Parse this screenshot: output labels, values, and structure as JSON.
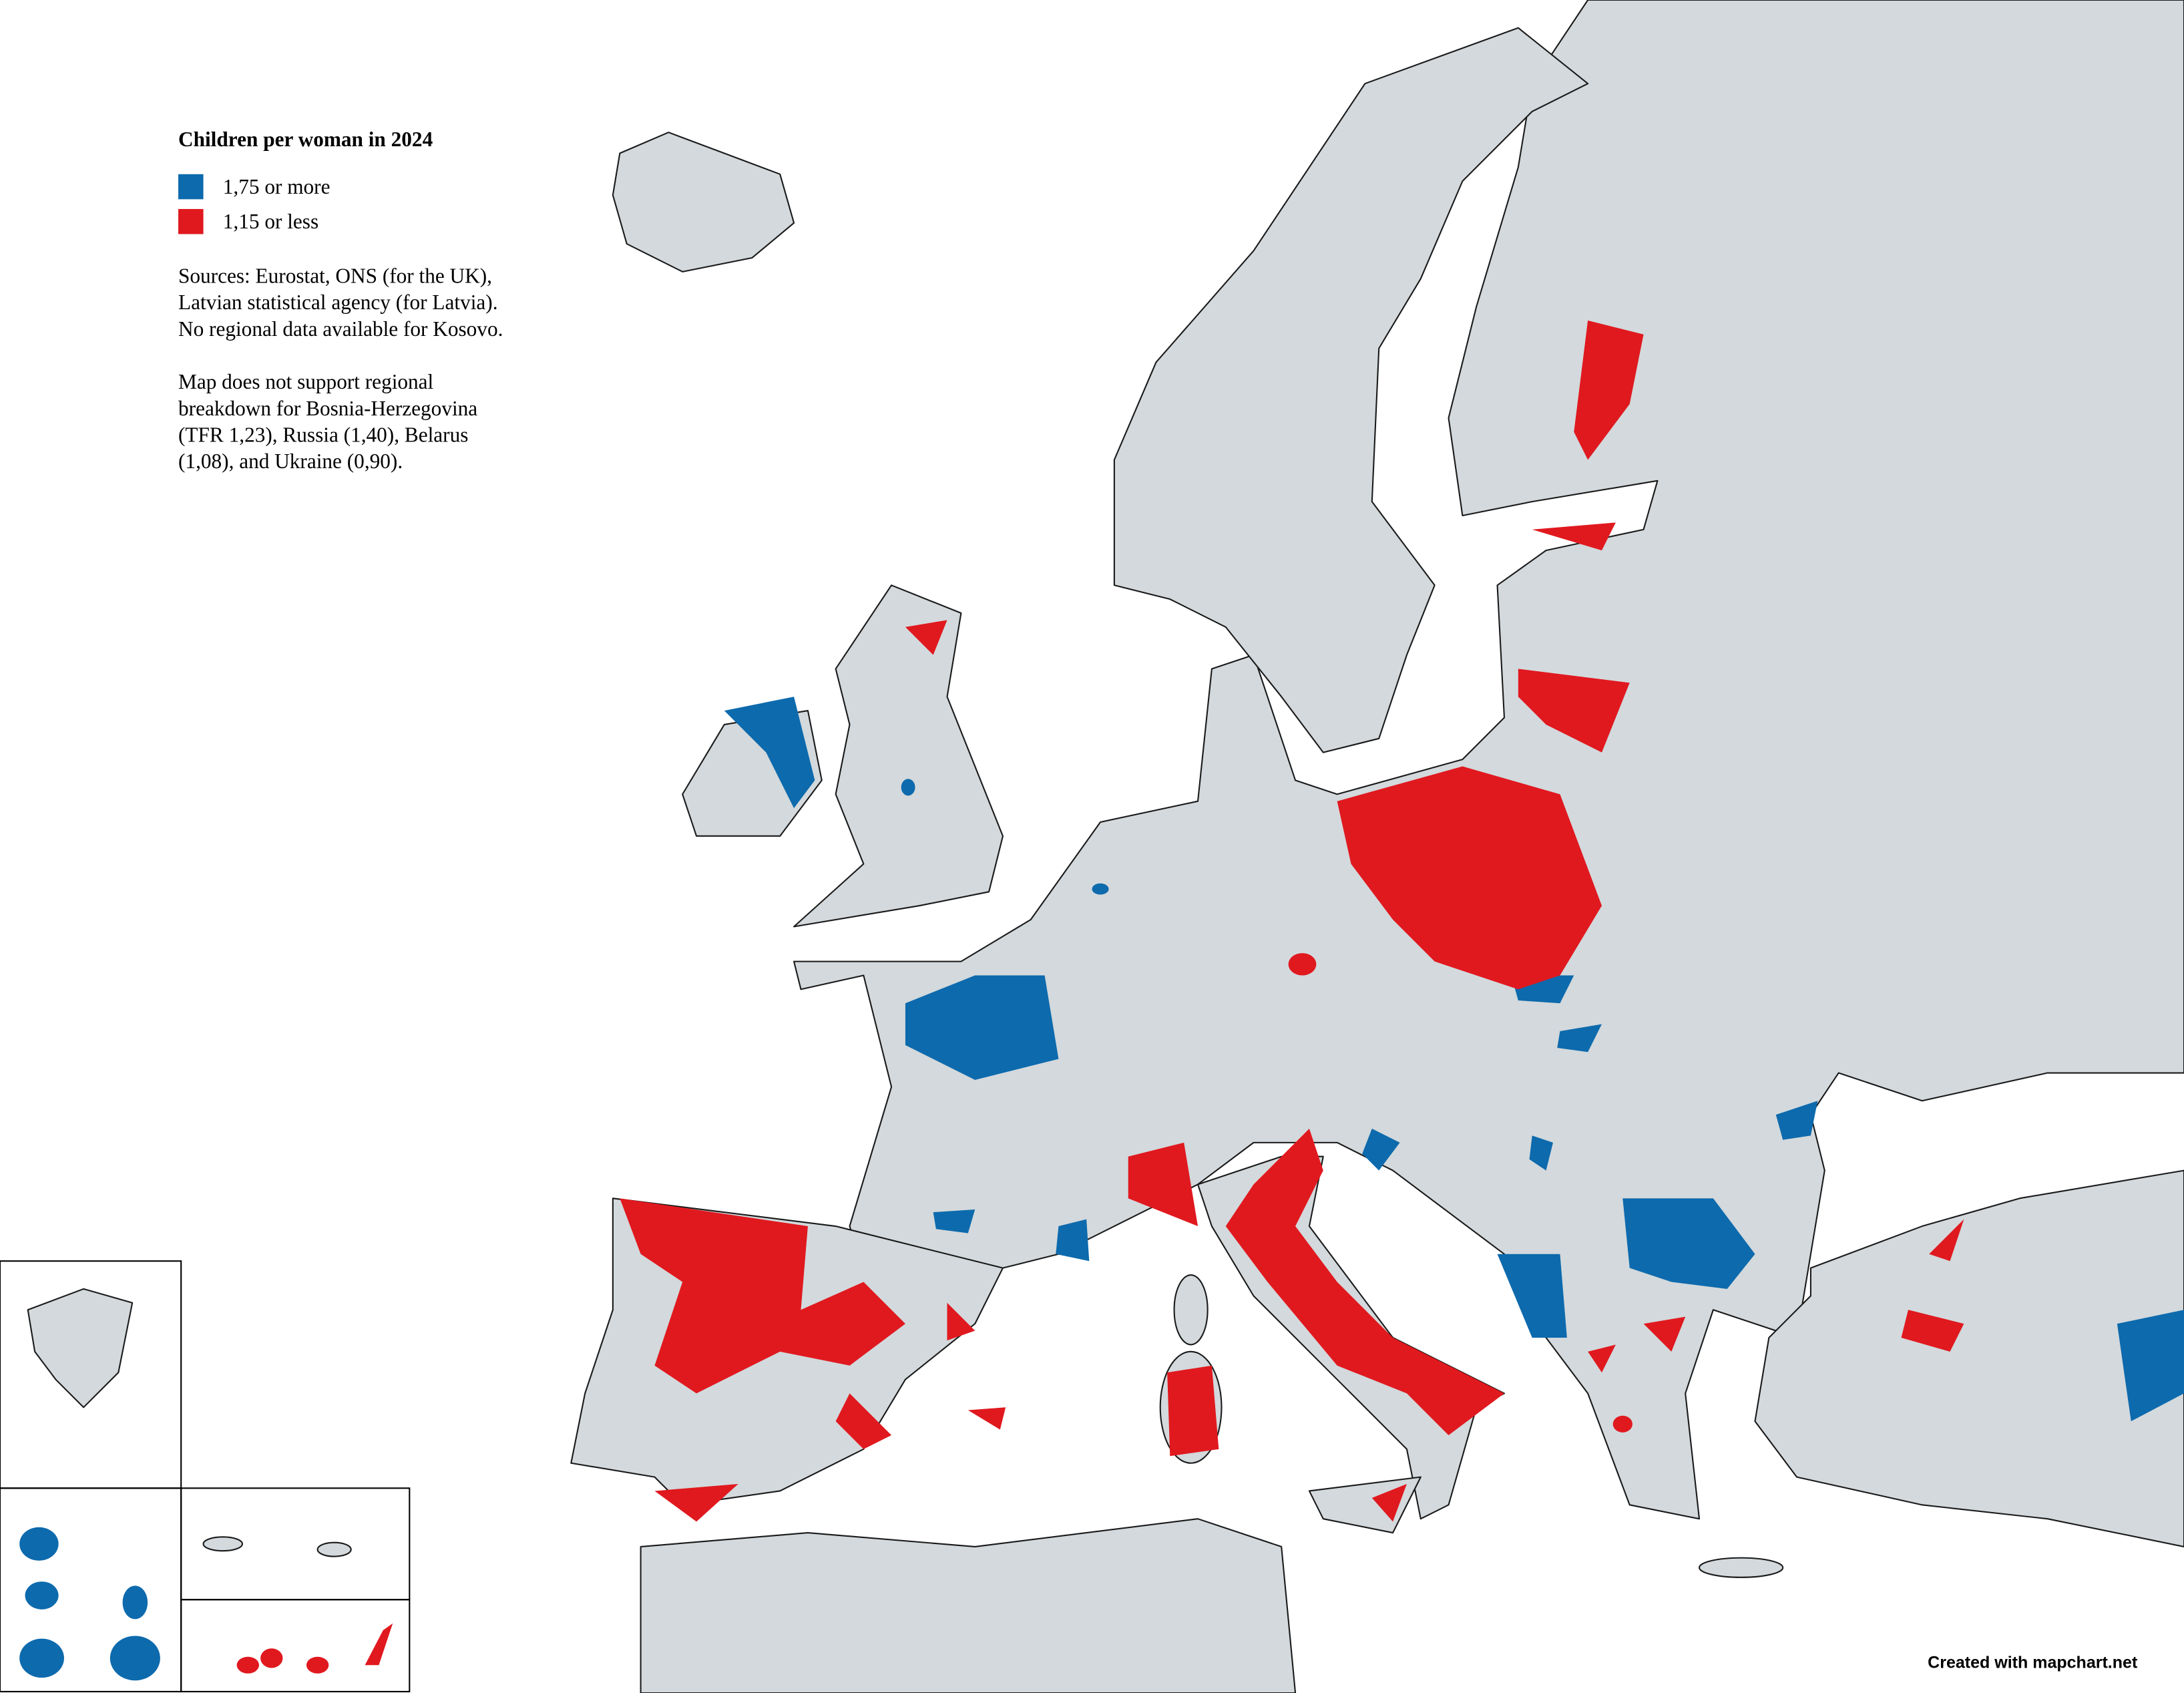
{
  "title": "Children per woman in 2024",
  "legend": [
    {
      "color": "#0d6aad",
      "label": "1,75 or more"
    },
    {
      "color": "#e0191f",
      "label": "1,15 or less"
    }
  ],
  "sources": [
    "Sources: Eurostat, ONS (for the UK),",
    "Latvian statistical agency (for Latvia).",
    "No regional data available for Kosovo."
  ],
  "note": [
    "Map does not support regional",
    "breakdown for Bosnia-Herzegovina",
    "(TFR 1,23), Russia (1,40), Belarus",
    "(1,08), and Ukraine (0,90)."
  ],
  "credit": "Created with mapchart.net"
}
